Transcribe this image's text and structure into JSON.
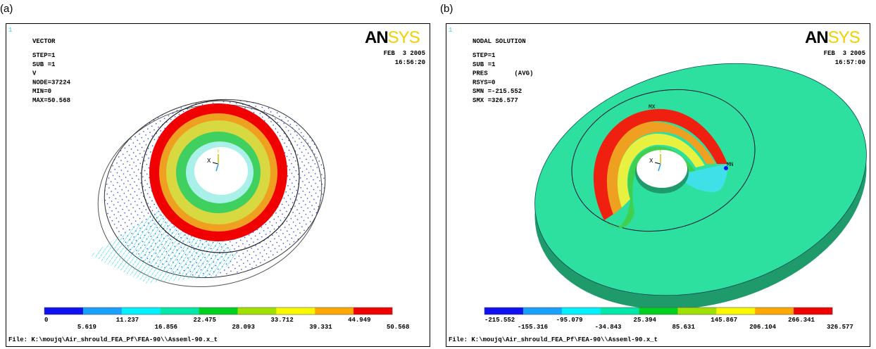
{
  "panels": [
    {
      "label": "(a)",
      "corner": "1",
      "info": [
        "VECTOR",
        "STEP=1",
        "SUB =1",
        "V",
        "NODE=37224",
        "MIN=0",
        "MAX=50.568"
      ],
      "logo": [
        "AN",
        "SYS"
      ],
      "date": "FEB  3 2005",
      "time": "16:56:20",
      "triad": [
        "X",
        "Y"
      ],
      "legend": [
        "0",
        "5.619",
        "11.237",
        "16.856",
        "22.475",
        "28.093",
        "33.712",
        "39.331",
        "44.949",
        "50.568"
      ],
      "file": "File: K:\\moujq\\Air_shrould_FEA_Pf\\FEA-90\\\\Asseml-90.x_t"
    },
    {
      "label": "(b)",
      "corner": "1",
      "info": [
        "NODAL SOLUTION",
        "STEP=1",
        "SUB =1",
        "PRES       (AVG)",
        "RSYS=0",
        "SMN =-215.552",
        "SMX =326.577"
      ],
      "logo": [
        "AN",
        "SYS"
      ],
      "date": "FEB  3 2005",
      "time": "16:57:00",
      "triad": [
        "X",
        "Y"
      ],
      "markers": [
        "MX",
        "MN"
      ],
      "legend": [
        "-215.552",
        "-155.316",
        "-95.079",
        "-34.843",
        "25.394",
        "85.631",
        "145.867",
        "206.104",
        "266.341",
        "326.577"
      ],
      "file": "File: K:\\moujq\\Air_shrould_FEA_Pf\\FEA-90\\\\Asseml-90.x_t"
    }
  ]
}
